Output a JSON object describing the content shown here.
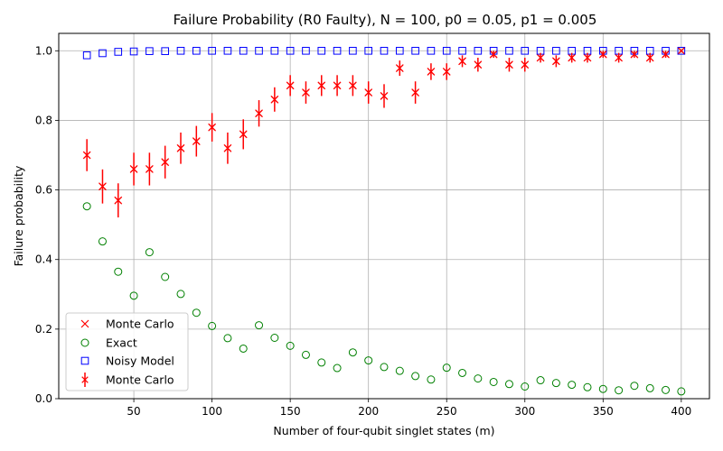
{
  "chart_data": {
    "type": "scatter",
    "title": "Failure Probability (R0 Faulty), N = 100, p0 = 0.05, p1 = 0.005",
    "xlabel": "Number of four-qubit singlet states (m)",
    "ylabel": "Failure probability",
    "xlim": [
      2,
      418
    ],
    "ylim": [
      0,
      1.05
    ],
    "xticks": [
      50,
      100,
      150,
      200,
      250,
      300,
      350,
      400
    ],
    "yticks": [
      0.0,
      0.2,
      0.4,
      0.6,
      0.8,
      1.0
    ],
    "xtick_labels": [
      "50",
      "100",
      "150",
      "200",
      "250",
      "300",
      "350",
      "400"
    ],
    "ytick_labels": [
      "0.0",
      "0.2",
      "0.4",
      "0.6",
      "0.8",
      "1.0"
    ],
    "grid": true,
    "legend_position": "lower-left",
    "x": [
      20,
      30,
      40,
      50,
      60,
      70,
      80,
      90,
      100,
      110,
      120,
      130,
      140,
      150,
      160,
      170,
      180,
      190,
      200,
      210,
      220,
      230,
      240,
      250,
      260,
      270,
      280,
      290,
      300,
      310,
      320,
      330,
      340,
      350,
      360,
      370,
      380,
      390,
      400
    ],
    "series": [
      {
        "name": "Monte Carlo",
        "marker": "x",
        "color": "#ff0000",
        "values": [
          0.7,
          0.61,
          0.57,
          0.66,
          0.66,
          0.68,
          0.72,
          0.74,
          0.78,
          0.72,
          0.76,
          0.82,
          0.86,
          0.9,
          0.88,
          0.9,
          0.9,
          0.9,
          0.88,
          0.87,
          0.95,
          0.88,
          0.94,
          0.94,
          0.97,
          0.96,
          0.99,
          0.96,
          0.96,
          0.98,
          0.97,
          0.98,
          0.98,
          0.99,
          0.98,
          0.99,
          0.98,
          0.99,
          1.0
        ]
      },
      {
        "name": "Exact",
        "marker": "o",
        "color": "#008000",
        "values": [
          0.553,
          0.452,
          0.365,
          0.296,
          0.421,
          0.35,
          0.301,
          0.247,
          0.209,
          0.174,
          0.144,
          0.211,
          0.175,
          0.152,
          0.126,
          0.104,
          0.088,
          0.133,
          0.11,
          0.091,
          0.08,
          0.065,
          0.055,
          0.089,
          0.074,
          0.058,
          0.048,
          0.042,
          0.035,
          0.053,
          0.045,
          0.04,
          0.033,
          0.028,
          0.024,
          0.037,
          0.03,
          0.025,
          0.021
        ]
      },
      {
        "name": "Noisy Model",
        "marker": "s",
        "color": "#0000ff",
        "values": [
          0.987,
          0.993,
          0.997,
          0.998,
          0.999,
          0.999,
          1.0,
          1.0,
          1.0,
          1.0,
          1.0,
          1.0,
          1.0,
          1.0,
          1.0,
          1.0,
          1.0,
          1.0,
          1.0,
          1.0,
          1.0,
          1.0,
          1.0,
          1.0,
          1.0,
          1.0,
          1.0,
          1.0,
          1.0,
          1.0,
          1.0,
          1.0,
          1.0,
          1.0,
          1.0,
          1.0,
          1.0,
          1.0,
          1.0
        ]
      },
      {
        "name": "Monte Carlo",
        "marker": "errorbar",
        "color": "#ff0000",
        "values": [
          0.7,
          0.61,
          0.57,
          0.66,
          0.66,
          0.68,
          0.72,
          0.74,
          0.78,
          0.72,
          0.76,
          0.82,
          0.86,
          0.9,
          0.88,
          0.9,
          0.9,
          0.9,
          0.88,
          0.87,
          0.95,
          0.88,
          0.94,
          0.94,
          0.97,
          0.96,
          0.99,
          0.96,
          0.96,
          0.98,
          0.97,
          0.98,
          0.98,
          0.99,
          0.98,
          0.99,
          0.98,
          0.99,
          1.0
        ],
        "errors": [
          0.046,
          0.049,
          0.049,
          0.047,
          0.047,
          0.047,
          0.045,
          0.044,
          0.041,
          0.045,
          0.043,
          0.038,
          0.035,
          0.03,
          0.032,
          0.03,
          0.03,
          0.03,
          0.032,
          0.034,
          0.022,
          0.032,
          0.024,
          0.024,
          0.017,
          0.02,
          0.01,
          0.02,
          0.02,
          0.014,
          0.017,
          0.014,
          0.014,
          0.01,
          0.014,
          0.01,
          0.014,
          0.01,
          0.0
        ]
      }
    ]
  }
}
